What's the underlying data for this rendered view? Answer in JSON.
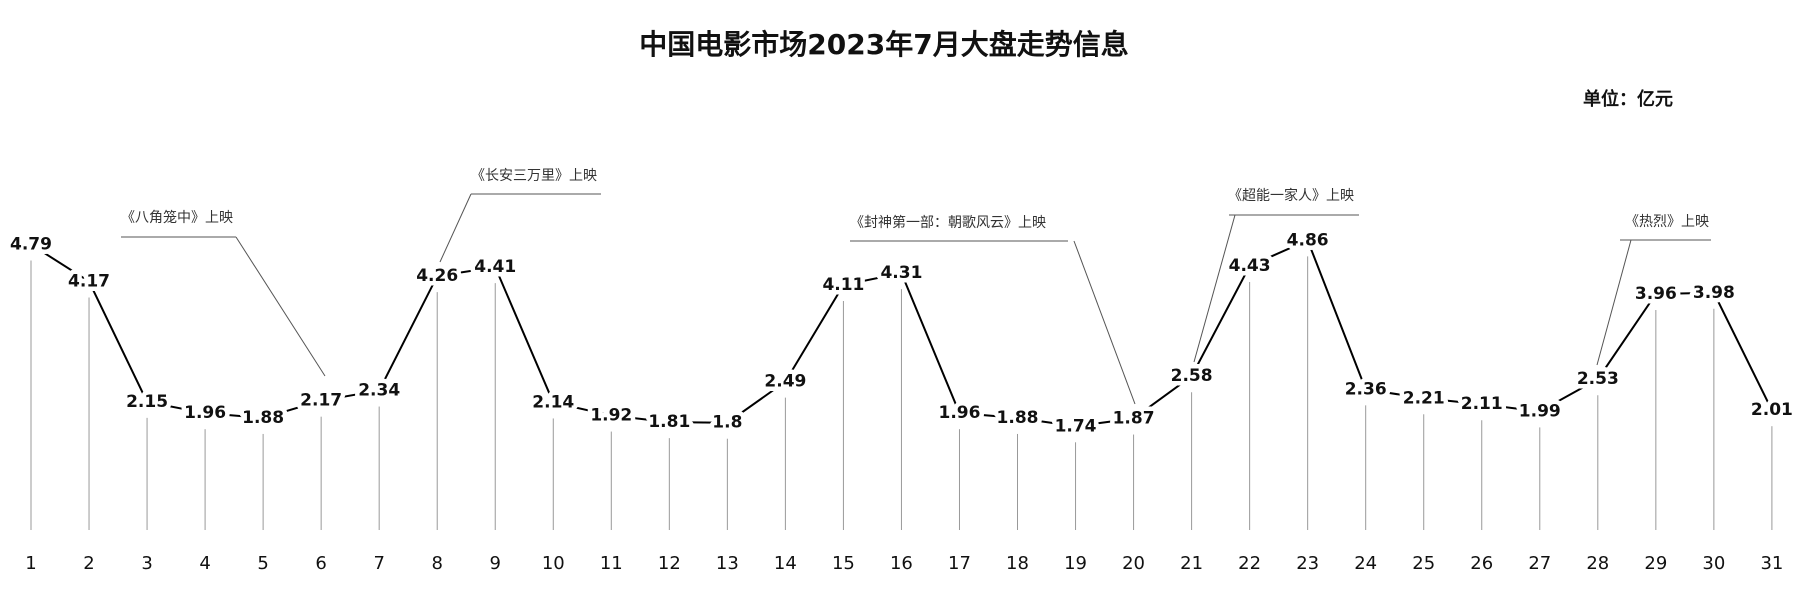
{
  "chart_data": {
    "type": "line",
    "title": "中国电影市场2023年7月大盘走势信息",
    "unit_label": "单位：亿元",
    "color": "#000000",
    "categories": [
      "1",
      "2",
      "3",
      "4",
      "5",
      "6",
      "7",
      "8",
      "9",
      "10",
      "11",
      "12",
      "13",
      "14",
      "15",
      "16",
      "17",
      "18",
      "19",
      "20",
      "21",
      "22",
      "23",
      "24",
      "25",
      "26",
      "27",
      "28",
      "29",
      "30",
      "31"
    ],
    "values": [
      4.79,
      4.17,
      2.15,
      1.96,
      1.88,
      2.17,
      2.34,
      4.26,
      4.41,
      2.14,
      1.92,
      1.81,
      1.8,
      2.49,
      4.11,
      4.31,
      1.96,
      1.88,
      1.74,
      1.87,
      2.58,
      4.43,
      4.86,
      2.36,
      2.21,
      2.11,
      1.99,
      2.53,
      3.96,
      3.98,
      2.01
    ],
    "annotations": [
      {
        "text": "《八角笼中》上映",
        "x": "6"
      },
      {
        "text": "《长安三万里》上映",
        "x": "8"
      },
      {
        "text": "《封神第一部：朝歌风云》上映",
        "x": "20"
      },
      {
        "text": "《超能一家人》上映",
        "x": "21"
      },
      {
        "text": "《热烈》上映",
        "x": "28"
      }
    ]
  }
}
